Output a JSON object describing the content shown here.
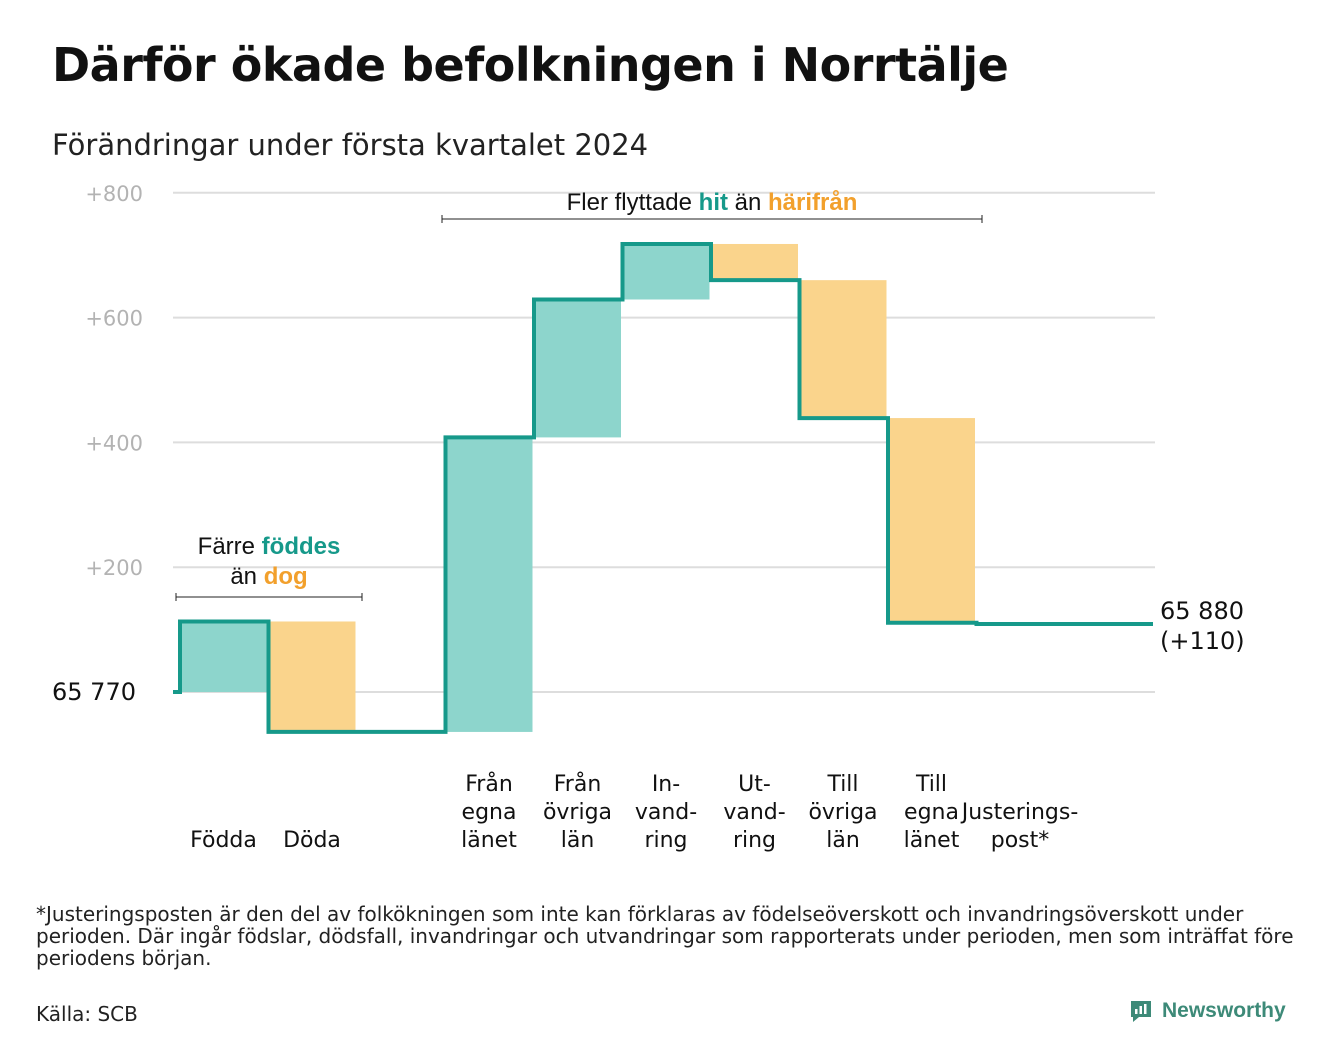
{
  "title": "Därför ökade befolkningen i Norrtälje",
  "subtitle": "Förändringar under första kvartalet 2024",
  "colors": {
    "increase_fill": "#8dd5cc",
    "decrease_fill": "#fad48c",
    "line": "#16998a",
    "hit": "#16998a",
    "harifran": "#f2a02c",
    "grid": "#dddddd",
    "tick": "#b3b3b3"
  },
  "chart_data": {
    "type": "waterfall",
    "y_ticks": [
      "+800",
      "+600",
      "+400",
      "+200"
    ],
    "ylim": [
      -65,
      800
    ],
    "grid": true,
    "start_label": "65 770",
    "start_value": 0,
    "steps": [
      {
        "label": [
          "Födda"
        ],
        "delta": 113,
        "type": "increase"
      },
      {
        "label": [
          "Döda"
        ],
        "delta": -177,
        "type": "decrease"
      },
      {
        "label": [
          ""
        ],
        "delta": 0,
        "type": "spacer"
      },
      {
        "label": [
          "Från",
          "egna",
          "länet"
        ],
        "delta": 472,
        "type": "increase"
      },
      {
        "label": [
          "Från",
          "övriga",
          "län"
        ],
        "delta": 221,
        "type": "increase"
      },
      {
        "label": [
          "In-",
          "vand-",
          "ring"
        ],
        "delta": 89,
        "type": "increase"
      },
      {
        "label": [
          "Ut-",
          "vand-",
          "ring"
        ],
        "delta": -58,
        "type": "decrease"
      },
      {
        "label": [
          "Till",
          "övriga",
          "län"
        ],
        "delta": -221,
        "type": "decrease"
      },
      {
        "label": [
          "Till",
          "egna",
          "länet"
        ],
        "delta": -328,
        "type": "decrease"
      },
      {
        "label": [
          "Justerings-",
          "post*"
        ],
        "delta": -2,
        "type": "adjustment"
      }
    ],
    "end_label": [
      "65 880",
      "(+110)"
    ],
    "annotations": [
      {
        "parts": [
          [
            "Färre ",
            "plain"
          ],
          [
            "föddes",
            "hit"
          ]
        ],
        "parts2": [
          [
            "än ",
            "plain"
          ],
          [
            "dog",
            "harifran"
          ]
        ],
        "spans": [
          0,
          1
        ]
      },
      {
        "parts": [
          [
            "Fler flyttade ",
            "plain"
          ],
          [
            "hit",
            "hit"
          ],
          [
            " än ",
            "plain"
          ],
          [
            "härifrån",
            "harifran"
          ]
        ],
        "spans": [
          3,
          8
        ]
      }
    ]
  },
  "footnote": "*Justeringsposten är den del av folkökningen som inte kan förklaras av födelseöverskott och invandringsöverskott under perioden. Där ingår födslar, dödsfall, invandringar och utvandringar som rapporterats under perioden, men som inträffat före periodens början.",
  "source": "Källa: SCB",
  "brand": "Newsworthy"
}
